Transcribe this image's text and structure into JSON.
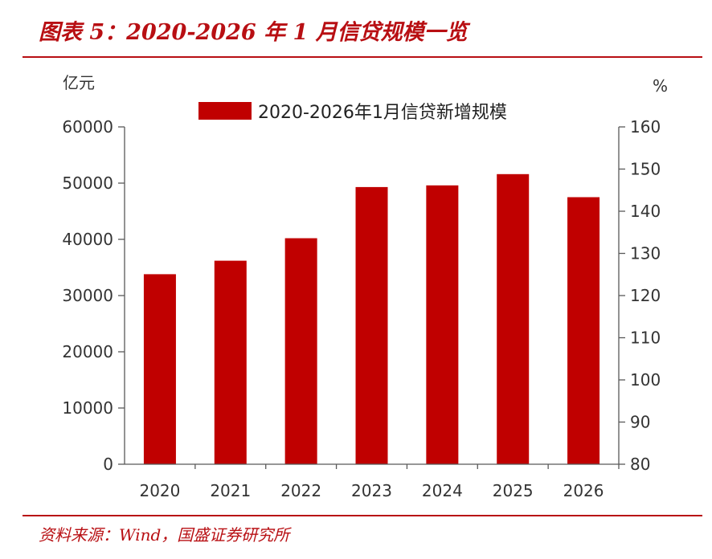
{
  "figure": {
    "title": "图表 5：2020-2026 年 1 月信贷规模一览",
    "source": "资料来源：Wind，国盛证券研究所"
  },
  "colors": {
    "accent": "#b80f13",
    "bar": "#c00000",
    "axis": "#595959",
    "text": "#333333"
  },
  "chart_data": {
    "type": "bar",
    "categories": [
      "2020",
      "2021",
      "2022",
      "2023",
      "2024",
      "2025",
      "2026"
    ],
    "series": [
      {
        "name": "2020-2026年1月信贷新增规模",
        "values": [
          33800,
          36200,
          40200,
          49300,
          49600,
          51600,
          47500
        ]
      }
    ],
    "ylabel": "亿元",
    "ylim": [
      0,
      60000
    ],
    "yticks": [
      0,
      10000,
      20000,
      30000,
      40000,
      50000,
      60000
    ],
    "y2label": "%",
    "y2lim": [
      80,
      160
    ],
    "y2ticks": [
      80,
      90,
      100,
      110,
      120,
      130,
      140,
      150,
      160
    ],
    "legend": "top-center",
    "grid": false
  }
}
